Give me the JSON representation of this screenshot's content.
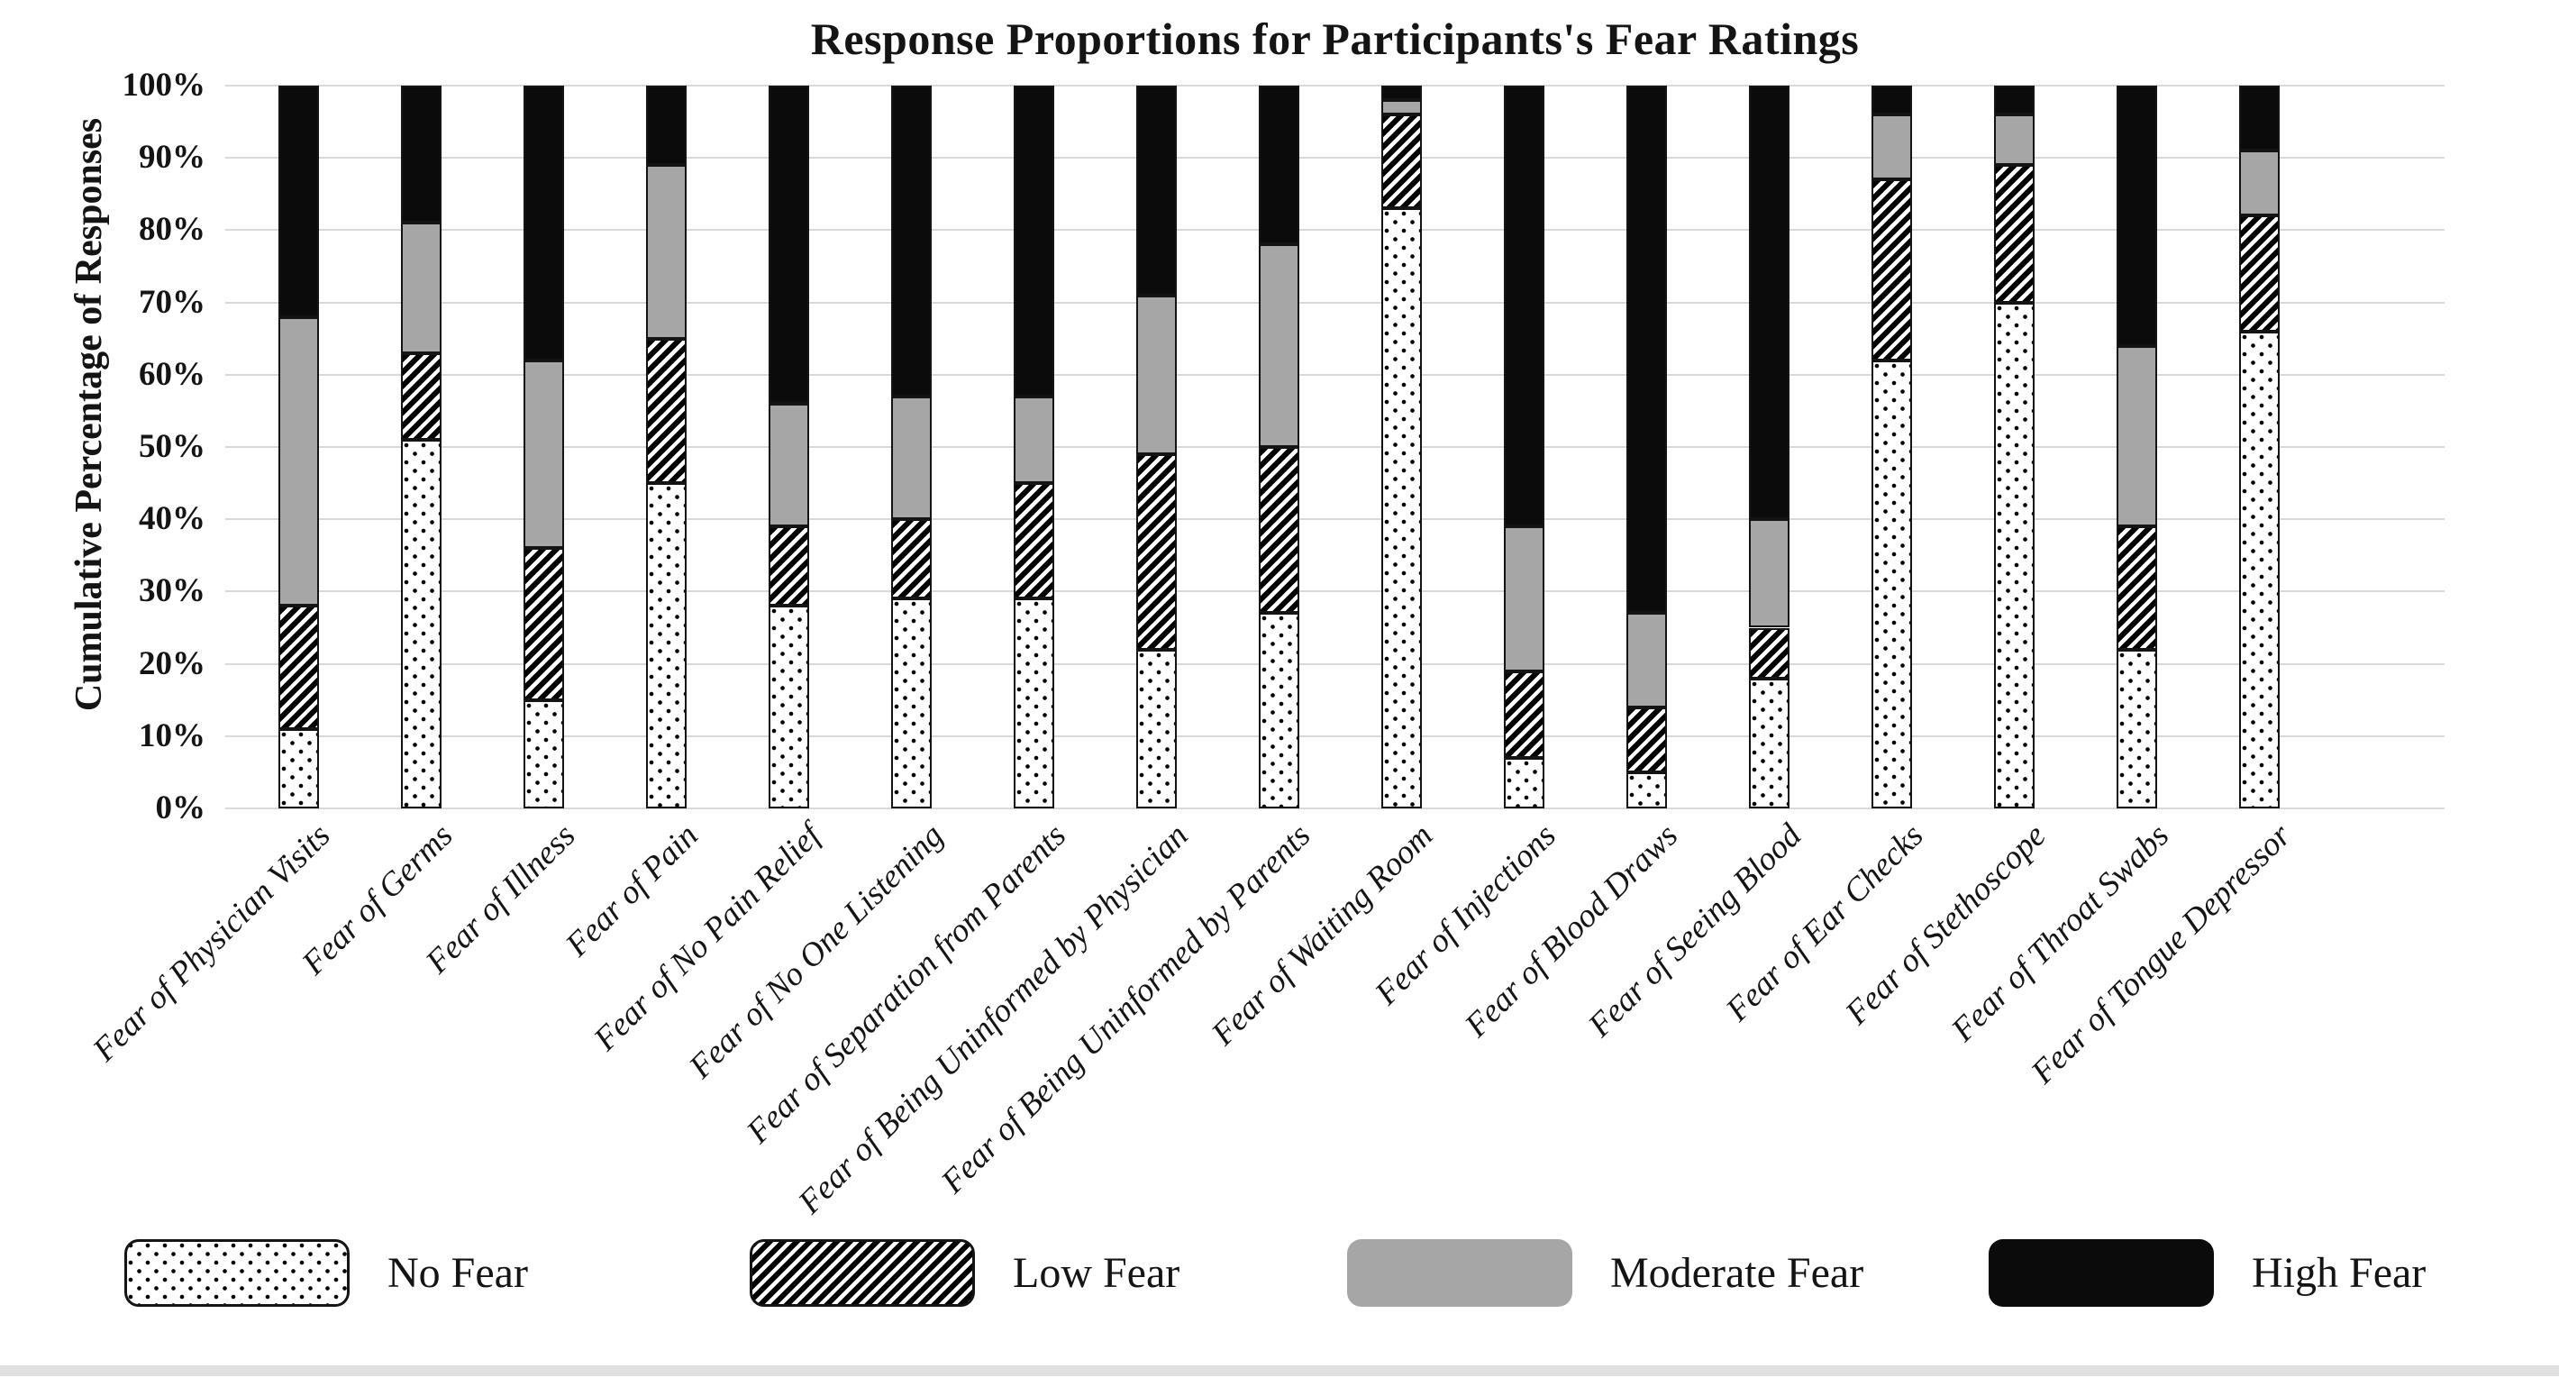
{
  "title": "Response Proportions for Participants's Fear Ratings",
  "y_axis": {
    "label": "Cumulative Percentage of Responses",
    "ticks": [
      "100%",
      "90%",
      "80%",
      "70%",
      "60%",
      "50%",
      "40%",
      "30%",
      "20%",
      "10%",
      "0%"
    ]
  },
  "legend": [
    {
      "label": "No Fear",
      "pattern": "dots"
    },
    {
      "label": "Low Fear",
      "pattern": "stripes"
    },
    {
      "label": "Moderate Fear",
      "pattern": "solid-gray"
    },
    {
      "label": "High Fear",
      "pattern": "solid-black"
    }
  ],
  "colors": {
    "moderate_fear": "#A6A6A6",
    "high_fear": "#0B0B0B",
    "gridline": "#D9D9D9",
    "text": "#141414"
  },
  "chart_data": {
    "type": "bar",
    "stacked": true,
    "title": "Response Proportions for Participants's Fear Ratings",
    "xlabel": "",
    "ylabel": "Cumulative Percentage of Responses",
    "ylim": [
      0,
      100
    ],
    "ytick_step": 10,
    "ytick_format": "percent",
    "grid": true,
    "legend_position": "bottom",
    "categories": [
      "Fear of Physician Visits",
      "Fear of Germs",
      "Fear of Illness",
      "Fear of Pain",
      "Fear of No Pain Relief",
      "Fear of No One Listening",
      "Fear of Separation from Parents",
      "Fear of Being Uninformed by Physician",
      "Fear of Being Uninformed by Parents",
      "Fear of Waiting Room",
      "Fear of Injections",
      "Fear of Blood Draws",
      "Fear of Seeing Blood",
      "Fear of Ear Checks",
      "Fear of Stethoscope",
      "Fear of Throat Swabs",
      "Fear of Tongue Depressor"
    ],
    "series": [
      {
        "name": "No Fear",
        "values": [
          11,
          51,
          15,
          45,
          28,
          29,
          29,
          22,
          27,
          83,
          7,
          5,
          18,
          62,
          70,
          22,
          66
        ]
      },
      {
        "name": "Low Fear",
        "values": [
          17,
          12,
          21,
          20,
          11,
          11,
          16,
          27,
          23,
          13,
          12,
          9,
          7,
          25,
          19,
          17,
          16
        ]
      },
      {
        "name": "Moderate Fear",
        "values": [
          40,
          18,
          26,
          24,
          17,
          17,
          12,
          22,
          28,
          2,
          20,
          13,
          15,
          9,
          7,
          25,
          9
        ]
      },
      {
        "name": "High Fear",
        "values": [
          32,
          19,
          38,
          11,
          44,
          43,
          43,
          29,
          22,
          2,
          61,
          73,
          60,
          4,
          4,
          36,
          9
        ]
      }
    ]
  }
}
